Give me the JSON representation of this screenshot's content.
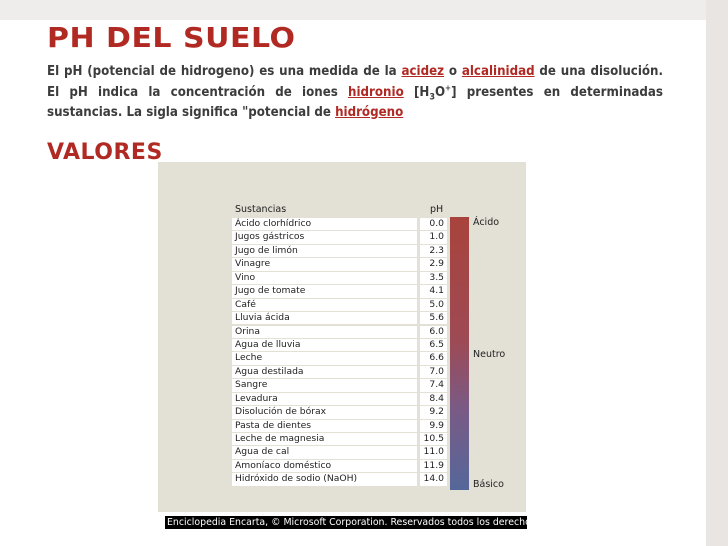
{
  "title": "pH DEL SUELO",
  "paragraph": {
    "p1": "El pH (potencial de hidrogeno) es una medida de la ",
    "link_acidez": "acidez",
    "p2": " o ",
    "link_alcalinidad": "alcalinidad",
    "p3": " de una disolución. El pH indica la concentración de iones ",
    "link_hidronio": "hidronio",
    "p4": " [H",
    "sub3": "3",
    "p5": "O",
    "sup_plus": "+",
    "p6": "] presentes en determinadas sustancias. La sigla significa \"potencial de ",
    "link_hidrogeno": "hidrógeno"
  },
  "subtitle": "Valores",
  "table": {
    "header_substance": "Sustancias",
    "header_ph": "pH",
    "rows": [
      {
        "name": "Ácido clorhídrico",
        "ph": "0.0"
      },
      {
        "name": "Jugos gástricos",
        "ph": "1.0"
      },
      {
        "name": "Jugo de limón",
        "ph": "2.3"
      },
      {
        "name": "Vinagre",
        "ph": "2.9"
      },
      {
        "name": "Vino",
        "ph": "3.5"
      },
      {
        "name": "Jugo de tomate",
        "ph": "4.1"
      },
      {
        "name": "Café",
        "ph": "5.0"
      },
      {
        "name": "Lluvia ácida",
        "ph": "5.6"
      },
      {
        "name": "Orina",
        "ph": "6.0"
      },
      {
        "name": "Agua de lluvia",
        "ph": "6.5"
      },
      {
        "name": "Leche",
        "ph": "6.6"
      },
      {
        "name": "Agua destilada",
        "ph": "7.0"
      },
      {
        "name": "Sangre",
        "ph": "7.4"
      },
      {
        "name": "Levadura",
        "ph": "8.4"
      },
      {
        "name": "Disolución de bórax",
        "ph": "9.2"
      },
      {
        "name": "Pasta de dientes",
        "ph": "9.9"
      },
      {
        "name": "Leche de magnesia",
        "ph": "10.5"
      },
      {
        "name": "Agua de cal",
        "ph": "11.0"
      },
      {
        "name": "Amoníaco doméstico",
        "ph": "11.9"
      },
      {
        "name": "Hidróxido de sodio (NaOH)",
        "ph": "14.0"
      }
    ],
    "scale_acid": "Ácido",
    "scale_neutral": "Neutro",
    "scale_basic": "Básico"
  },
  "copyright": "Enciclopedia Encarta, © Microsoft Corporation. Reservados todos los derechos.",
  "colors": {
    "accent_red": "#b02923",
    "text_gray": "#3c3c3c"
  }
}
